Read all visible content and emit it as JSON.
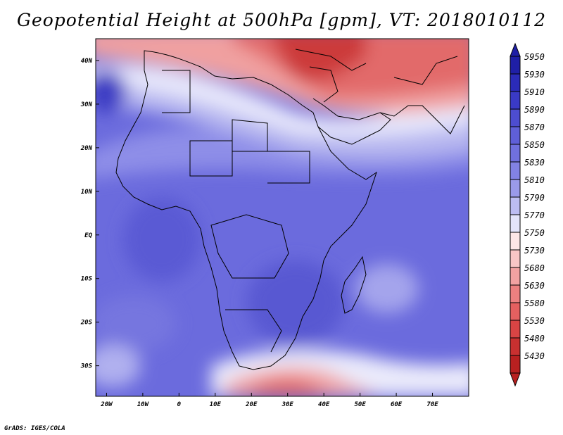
{
  "title": "Geopotential Height at 500hPa [gpm], VT: 2018010112",
  "footer": "GrADS: IGES/COLA",
  "map": {
    "lon_range": [
      -23,
      80
    ],
    "lat_range": [
      -37,
      45
    ],
    "lon_ticks": [
      "20W",
      "10W",
      "0",
      "10E",
      "20E",
      "30E",
      "40E",
      "50E",
      "60E",
      "70E"
    ],
    "lat_ticks": [
      "40N",
      "30N",
      "20N",
      "10N",
      "EQ",
      "10S",
      "20S",
      "30S"
    ]
  },
  "colorbar": {
    "levels": [
      "5950",
      "5930",
      "5910",
      "5890",
      "5870",
      "5850",
      "5830",
      "5810",
      "5790",
      "5770",
      "5750",
      "5730",
      "5680",
      "5630",
      "5580",
      "5530",
      "5480",
      "5430"
    ],
    "colors": [
      "#1f1fa6",
      "#2b2bb8",
      "#3a3ac6",
      "#4d4dd0",
      "#5f5fd8",
      "#7070de",
      "#8282e4",
      "#9a9aea",
      "#bdbdf2",
      "#e4e4fa",
      "#fde6e6",
      "#f8c6c6",
      "#f2a2a2",
      "#ec8080",
      "#e46060",
      "#d84444",
      "#c83030",
      "#b82020"
    ]
  }
}
